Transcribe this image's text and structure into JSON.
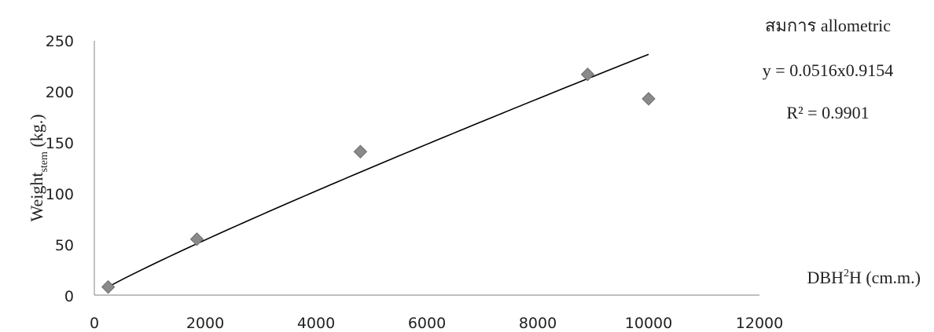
{
  "chart_data": {
    "type": "scatter",
    "xlim": [
      0,
      12000
    ],
    "ylim": [
      0,
      250
    ],
    "x_ticks": [
      "0",
      "2000",
      "4000",
      "6000",
      "8000",
      "10000",
      "12000"
    ],
    "y_ticks": [
      "0",
      "50",
      "100",
      "150",
      "200",
      "250"
    ],
    "ylabel": {
      "main": "Weight",
      "sub": "stem",
      "suffix": " (kg.)"
    },
    "xlabel": {
      "part1": "DBH",
      "sup": "2",
      "part2": "H (cm.m.)"
    },
    "points": [
      {
        "x": 250,
        "y": 8
      },
      {
        "x": 1850,
        "y": 55
      },
      {
        "x": 4800,
        "y": 141
      },
      {
        "x": 8900,
        "y": 217
      },
      {
        "x": 10000,
        "y": 193
      }
    ],
    "trendline": {
      "type": "power",
      "a": 0.0516,
      "b": 0.9154,
      "x_start": 250,
      "x_end": 10000
    },
    "annotations": {
      "heading": "สมการ allometric",
      "equation": "y = 0.0516x0.9154",
      "r2": "R² = 0.9901"
    },
    "colors": {
      "marker": "#8a8a8a",
      "marker_stroke": "#6e6e6e",
      "line": "#000000",
      "axis": "#999999"
    },
    "marker_shape": "diamond",
    "grid": false
  }
}
